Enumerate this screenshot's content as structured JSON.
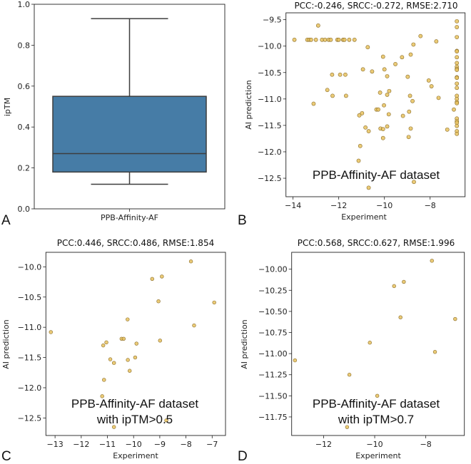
{
  "colors": {
    "box_fill": "#467ca6",
    "box_line": "#3d3d3d",
    "point_fill": "#e8c25f",
    "point_edge": "#8a6d2a"
  },
  "chart_data": [
    {
      "panel": "A",
      "type": "box",
      "title": "",
      "xlabel": "",
      "ylabel": "ipTM",
      "categories": [
        "PPB-Affinity-AF"
      ],
      "box": {
        "whisker_low": 0.12,
        "q1": 0.18,
        "median": 0.27,
        "q3": 0.55,
        "whisker_high": 0.93
      },
      "ylim": [
        0,
        1
      ],
      "yticks": [
        0,
        0.2,
        0.4,
        0.6,
        0.8,
        1.0
      ],
      "ytick_labels": [
        "0.0",
        "0.2",
        "0.4",
        "0.6",
        "0.8",
        "1.0"
      ]
    },
    {
      "panel": "B",
      "type": "scatter",
      "title": "PCC:-0.246, SRCC:-0.272, RMSE:2.710",
      "xlabel": "Experiment",
      "ylabel": "AI prediction",
      "annotation": [
        "PPB-Affinity-AF dataset"
      ],
      "xlim": [
        -14.31,
        -6.47
      ],
      "ylim": [
        -12.85,
        -9.37
      ],
      "xticks": [
        -14,
        -12,
        -10,
        -8
      ],
      "xtick_labels": [
        "−14",
        "−12",
        "−10",
        "−8"
      ],
      "yticks": [
        -9.5,
        -10,
        -10.5,
        -11,
        -11.5,
        -12,
        -12.5
      ],
      "ytick_labels": [
        "−9.5",
        "−10.0",
        "−10.5",
        "−11.0",
        "−11.5",
        "−12.0",
        "−12.5"
      ],
      "points": [
        [
          -12.9,
          -9.61
        ],
        [
          -13.94,
          -9.88
        ],
        [
          -13.375,
          -9.88
        ],
        [
          -13.29,
          -9.88
        ],
        [
          -13.21,
          -9.88
        ],
        [
          -13.0,
          -9.88
        ],
        [
          -12.73,
          -9.88
        ],
        [
          -12.6,
          -9.88
        ],
        [
          -12.44,
          -9.88
        ],
        [
          -12.35,
          -9.88
        ],
        [
          -12.06,
          -9.88
        ],
        [
          -12.0,
          -9.88
        ],
        [
          -11.81,
          -9.88
        ],
        [
          -11.75,
          -9.88
        ],
        [
          -11.54,
          -9.88
        ],
        [
          -11.31,
          -9.88
        ],
        [
          -8.42,
          -9.81
        ],
        [
          -8.73,
          -9.97
        ],
        [
          -7.73,
          -9.91
        ],
        [
          -10.73,
          -10.02
        ],
        [
          -10.06,
          -10.2
        ],
        [
          -9.23,
          -10.21
        ],
        [
          -8.85,
          -10.16
        ],
        [
          -9.52,
          -10.34
        ],
        [
          -10.94,
          -10.44
        ],
        [
          -10.54,
          -10.48
        ],
        [
          -10.0,
          -10.44
        ],
        [
          -9.88,
          -10.57
        ],
        [
          -8.98,
          -10.58
        ],
        [
          -12.29,
          -10.54
        ],
        [
          -11.94,
          -10.54
        ],
        [
          -11.71,
          -10.54
        ],
        [
          -8.06,
          -10.65
        ],
        [
          -7.94,
          -10.76
        ],
        [
          -12.5,
          -10.83
        ],
        [
          -12.27,
          -10.94
        ],
        [
          -11.68,
          -10.94
        ],
        [
          -10.19,
          -10.88
        ],
        [
          -9.79,
          -10.85
        ],
        [
          -9.88,
          -10.92
        ],
        [
          -8.88,
          -10.94
        ],
        [
          -8.77,
          -11.04
        ],
        [
          -7.63,
          -10.98
        ],
        [
          -13.1,
          -11.09
        ],
        [
          -10.02,
          -11.12
        ],
        [
          -10.35,
          -11.2
        ],
        [
          -10.27,
          -11.2
        ],
        [
          -9.81,
          -11.29
        ],
        [
          -10.98,
          -11.27
        ],
        [
          -11.1,
          -11.31
        ],
        [
          -9.19,
          -11.32
        ],
        [
          -8.92,
          -11.24
        ],
        [
          -6.96,
          -11.2
        ],
        [
          -10.83,
          -11.54
        ],
        [
          -10.69,
          -11.61
        ],
        [
          -10.17,
          -11.56
        ],
        [
          -10.06,
          -11.57
        ],
        [
          -9.88,
          -11.52
        ],
        [
          -8.85,
          -11.56
        ],
        [
          -7.25,
          -11.58
        ],
        [
          -10.06,
          -11.74
        ],
        [
          -8.94,
          -11.72
        ],
        [
          -11.06,
          -11.89
        ],
        [
          -11.13,
          -12.17
        ],
        [
          -10.69,
          -12.68
        ],
        [
          -8.71,
          -12.57
        ],
        [
          -6.83,
          -9.53
        ],
        [
          -6.83,
          -9.64
        ],
        [
          -6.83,
          -9.83
        ],
        [
          -6.83,
          -10.09
        ],
        [
          -6.83,
          -10.1
        ],
        [
          -6.83,
          -10.21
        ],
        [
          -6.83,
          -10.32
        ],
        [
          -6.83,
          -10.39
        ],
        [
          -6.83,
          -10.43
        ],
        [
          -6.83,
          -10.45
        ],
        [
          -6.83,
          -10.59
        ],
        [
          -6.83,
          -10.6
        ],
        [
          -6.83,
          -10.71
        ],
        [
          -6.83,
          -10.79
        ],
        [
          -6.83,
          -10.94
        ],
        [
          -6.83,
          -11.0
        ],
        [
          -6.83,
          -11.06
        ],
        [
          -6.83,
          -11.08
        ],
        [
          -6.83,
          -11.37
        ],
        [
          -6.83,
          -11.42
        ],
        [
          -6.83,
          -11.45
        ],
        [
          -6.83,
          -11.51
        ],
        [
          -6.83,
          -11.61
        ],
        [
          -6.83,
          -11.66
        ]
      ]
    },
    {
      "panel": "C",
      "type": "scatter",
      "title": "PCC:0.446, SRCC:0.486, RMSE:1.854",
      "xlabel": "Experiment",
      "ylabel": "AI prediction",
      "annotation": [
        "PPB-Affinity-AF dataset",
        "with ipTM>0.5"
      ],
      "xlim": [
        -13.35,
        -6.49
      ],
      "ylim": [
        -12.79,
        -9.76
      ],
      "xticks": [
        -13,
        -12,
        -11,
        -10,
        -9,
        -8,
        -7
      ],
      "xtick_labels": [
        "−13",
        "−12",
        "−11",
        "−10",
        "−9",
        "−8",
        "−7"
      ],
      "yticks": [
        -10,
        -10.5,
        -11,
        -11.5,
        -12,
        -12.5
      ],
      "ytick_labels": [
        "−10.0",
        "−10.5",
        "−11.0",
        "−11.5",
        "−12.0",
        "−12.5"
      ],
      "points": [
        [
          -13.16,
          -11.08
        ],
        [
          -7.81,
          -9.91
        ],
        [
          -8.92,
          -10.16
        ],
        [
          -9.29,
          -10.2
        ],
        [
          -9.05,
          -10.57
        ],
        [
          -6.92,
          -10.59
        ],
        [
          -10.23,
          -10.87
        ],
        [
          -7.69,
          -10.97
        ],
        [
          -10.46,
          -11.19
        ],
        [
          -10.38,
          -11.19
        ],
        [
          -8.99,
          -11.22
        ],
        [
          -11.04,
          -11.25
        ],
        [
          -11.16,
          -11.3
        ],
        [
          -9.89,
          -11.27
        ],
        [
          -10.89,
          -11.53
        ],
        [
          -10.75,
          -11.59
        ],
        [
          -9.94,
          -11.5
        ],
        [
          -10.22,
          -11.54
        ],
        [
          -10.15,
          -11.72
        ],
        [
          -11.13,
          -11.87
        ],
        [
          -11.2,
          -12.14
        ],
        [
          -10.75,
          -12.65
        ],
        [
          -8.75,
          -12.54
        ]
      ]
    },
    {
      "panel": "D",
      "type": "scatter",
      "title": "PCC:0.568, SRCC:0.627, RMSE:1.996",
      "xlabel": "Experiment",
      "ylabel": "AI prediction",
      "annotation": [
        "PPB-Affinity-AF dataset",
        "with ipTM>0.7"
      ],
      "xlim": [
        -13.25,
        -6.49
      ],
      "ylim": [
        -11.97,
        -9.8
      ],
      "xticks": [
        -12,
        -10,
        -8
      ],
      "xtick_labels": [
        "−12",
        "−10",
        "−8"
      ],
      "yticks": [
        -10,
        -10.25,
        -10.5,
        -10.75,
        -11,
        -11.25,
        -11.5,
        -11.75
      ],
      "ytick_labels": [
        "−10.00",
        "−10.25",
        "−10.50",
        "−10.75",
        "−11.00",
        "−11.25",
        "−11.50",
        "−11.75"
      ],
      "points": [
        [
          -13.12,
          -11.08
        ],
        [
          -7.76,
          -9.9
        ],
        [
          -8.86,
          -10.15
        ],
        [
          -9.24,
          -10.2
        ],
        [
          -8.99,
          -10.57
        ],
        [
          -6.85,
          -10.59
        ],
        [
          -10.19,
          -10.87
        ],
        [
          -7.64,
          -10.98
        ],
        [
          -10.99,
          -11.25
        ],
        [
          -9.9,
          -11.5
        ],
        [
          -11.08,
          -11.87
        ]
      ]
    }
  ]
}
